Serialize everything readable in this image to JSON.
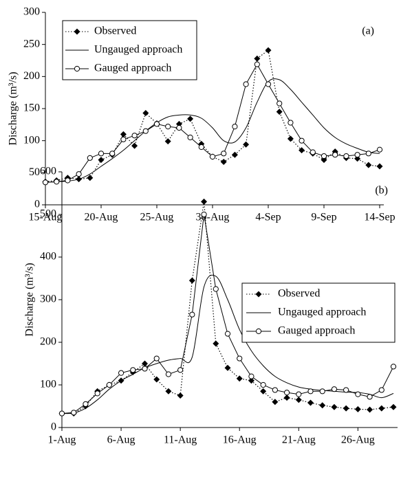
{
  "chart_data": [
    {
      "type": "line",
      "annotation": "(a)",
      "ylabel": "Discharge (m³/s)",
      "categories": [
        "15-Aug",
        null,
        null,
        null,
        null,
        "20-Aug",
        null,
        null,
        null,
        null,
        "25-Aug",
        null,
        null,
        null,
        null,
        "30-Aug",
        null,
        null,
        null,
        null,
        "4-Sep",
        null,
        null,
        null,
        null,
        "9-Sep",
        null,
        null,
        null,
        null,
        "14-Sep"
      ],
      "ylim": [
        0,
        300
      ],
      "yticks": [
        0,
        50,
        100,
        150,
        200,
        250,
        300
      ],
      "legend": "upper left",
      "series": [
        {
          "name": "Observed",
          "color": "#000000",
          "linestyle": "dotted",
          "marker": "diamond",
          "values": [
            36,
            38,
            42,
            40,
            42,
            70,
            78,
            110,
            92,
            143,
            127,
            99,
            126,
            134,
            95,
            75,
            67,
            78,
            94,
            228,
            241,
            145,
            103,
            85,
            80,
            70,
            83,
            73,
            72,
            62,
            60
          ]
        },
        {
          "name": "Ungauged approach",
          "color": "#000000",
          "linestyle": "solid",
          "marker": "none",
          "values": [
            35,
            36,
            37,
            40,
            48,
            60,
            72,
            85,
            100,
            115,
            128,
            137,
            140,
            140,
            135,
            120,
            100,
            98,
            120,
            160,
            192,
            195,
            180,
            160,
            140,
            120,
            105,
            95,
            88,
            82,
            80
          ]
        },
        {
          "name": "Gauged approach",
          "color": "#000000",
          "linestyle": "solid",
          "marker": "circle",
          "values": [
            35,
            36,
            38,
            48,
            73,
            80,
            80,
            102,
            108,
            115,
            126,
            122,
            120,
            105,
            90,
            75,
            80,
            122,
            188,
            219,
            188,
            158,
            128,
            100,
            82,
            76,
            78,
            76,
            78,
            80,
            86
          ]
        }
      ]
    },
    {
      "type": "line",
      "annotation": "(b)",
      "ylabel": "Discharge (m³/s)",
      "categories": [
        "1-Aug",
        null,
        null,
        null,
        null,
        "6-Aug",
        null,
        null,
        null,
        null,
        "11-Aug",
        null,
        null,
        null,
        null,
        "16-Aug",
        null,
        null,
        null,
        null,
        "21-Aug",
        null,
        null,
        null,
        null,
        "26-Aug",
        null,
        null,
        null
      ],
      "ylim": [
        0,
        600
      ],
      "yticks": [
        0,
        100,
        200,
        300,
        400,
        500,
        600
      ],
      "legend": "upper right",
      "series": [
        {
          "name": "Observed",
          "color": "#000000",
          "linestyle": "dotted",
          "marker": "diamond",
          "values": [
            33,
            33,
            50,
            85,
            100,
            110,
            130,
            150,
            113,
            85,
            75,
            345,
            530,
            197,
            140,
            115,
            110,
            85,
            60,
            70,
            65,
            58,
            52,
            48,
            45,
            43,
            42,
            45,
            48
          ]
        },
        {
          "name": "Ungauged approach",
          "color": "#000000",
          "linestyle": "solid",
          "marker": "none",
          "values": [
            33,
            34,
            45,
            65,
            90,
            110,
            125,
            140,
            150,
            158,
            162,
            165,
            330,
            355,
            300,
            230,
            180,
            145,
            120,
            105,
            95,
            90,
            87,
            85,
            83,
            82,
            78,
            70,
            80
          ]
        },
        {
          "name": "Gauged approach",
          "color": "#000000",
          "linestyle": "solid",
          "marker": "circle",
          "values": [
            33,
            35,
            55,
            80,
            100,
            128,
            135,
            138,
            162,
            125,
            135,
            265,
            500,
            325,
            220,
            162,
            120,
            100,
            88,
            82,
            78,
            85,
            85,
            90,
            88,
            78,
            72,
            88,
            143
          ]
        }
      ]
    }
  ]
}
